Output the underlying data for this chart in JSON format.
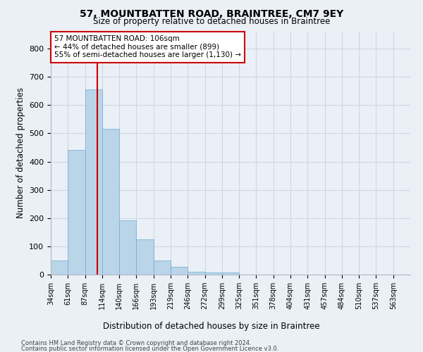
{
  "title": "57, MOUNTBATTEN ROAD, BRAINTREE, CM7 9EY",
  "subtitle": "Size of property relative to detached houses in Braintree",
  "xlabel_bottom": "Distribution of detached houses by size in Braintree",
  "ylabel": "Number of detached properties",
  "bar_values": [
    50,
    440,
    655,
    515,
    192,
    125,
    50,
    27,
    9,
    7,
    7,
    0,
    0,
    0,
    0,
    0,
    0,
    0,
    0,
    0
  ],
  "categories": [
    "34sqm",
    "61sqm",
    "87sqm",
    "114sqm",
    "140sqm",
    "166sqm",
    "193sqm",
    "219sqm",
    "246sqm",
    "272sqm",
    "299sqm",
    "325sqm",
    "351sqm",
    "378sqm",
    "404sqm",
    "431sqm",
    "457sqm",
    "484sqm",
    "510sqm",
    "537sqm",
    "563sqm"
  ],
  "bar_color": "#bad4e8",
  "bar_edge_color": "#6aadd5",
  "grid_color": "#ccd8e4",
  "background_color": "#eaf0f6",
  "vline_color": "#cc0000",
  "annotation_text": "57 MOUNTBATTEN ROAD: 106sqm\n← 44% of detached houses are smaller (899)\n55% of semi-detached houses are larger (1,130) →",
  "annotation_box_color": "#ffffff",
  "annotation_box_edge_color": "#cc0000",
  "ylim": [
    0,
    860
  ],
  "yticks": [
    0,
    100,
    200,
    300,
    400,
    500,
    600,
    700,
    800
  ],
  "footnote1": "Contains HM Land Registry data © Crown copyright and database right 2024.",
  "footnote2": "Contains public sector information licensed under the Open Government Licence v3.0."
}
